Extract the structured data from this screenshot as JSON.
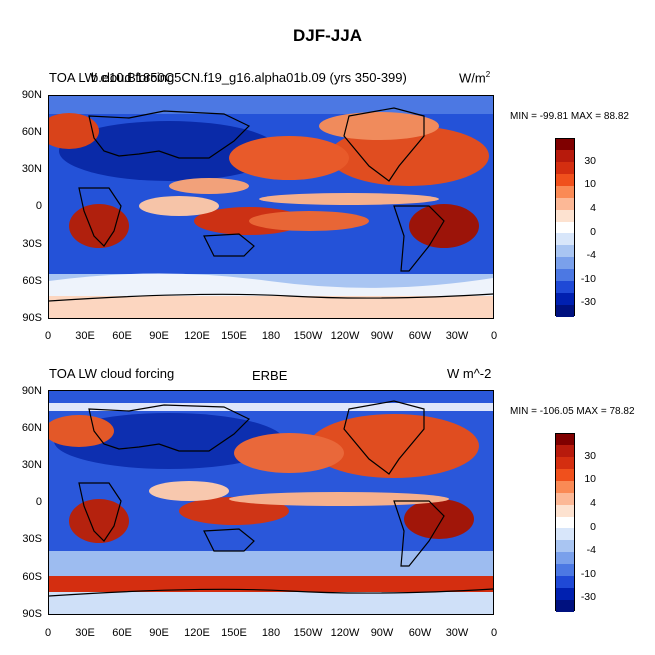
{
  "figure": {
    "title": "DJF-JJA"
  },
  "panels": [
    {
      "left_title": "TOA LW cloud forcing",
      "center_title": "b.e10.B1850C5CN.f19_g16.alpha01b.09 (yrs 350-399)",
      "units_base": "W/m",
      "units_sup": "2",
      "min_max": "MIN = -99.81 MAX =  88.82"
    },
    {
      "left_title": "TOA LW cloud forcing",
      "center_title": "ERBE",
      "units": "W m^-2",
      "min_max": "MIN = -106.05 MAX =  78.82"
    }
  ],
  "axes": {
    "lat_ticks": [
      "90N",
      "60N",
      "30N",
      "0",
      "30S",
      "60S",
      "90S"
    ],
    "lon_ticks": [
      "0",
      "30E",
      "60E",
      "90E",
      "120E",
      "150E",
      "180",
      "150W",
      "120W",
      "90W",
      "60W",
      "30W",
      "0"
    ]
  },
  "colorbar": {
    "labels": [
      "30",
      "10",
      "4",
      "0",
      "-4",
      "-10",
      "-30"
    ],
    "colors": [
      "#7f0000",
      "#b71a0c",
      "#d42e10",
      "#f0501c",
      "#fa8a55",
      "#fcb896",
      "#fde2d0",
      "#ffffff",
      "#d8e6fa",
      "#a9c5f2",
      "#7aa0eb",
      "#4c78e3",
      "#1f49d6",
      "#0020b0",
      "#00117f"
    ]
  }
}
